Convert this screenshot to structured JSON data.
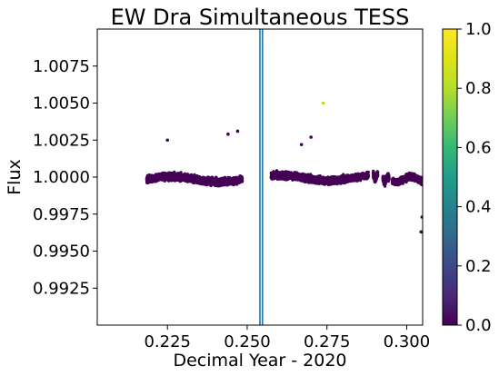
{
  "chart_data": {
    "type": "scatter",
    "title": "EW Dra Simultaneous TESS",
    "xlabel": "Decimal Year - 2020",
    "ylabel": "Flux",
    "xlim": [
      0.203,
      0.305
    ],
    "ylim": [
      0.99,
      1.01
    ],
    "xticks": [
      0.225,
      0.25,
      0.275,
      0.3
    ],
    "xtick_labels": [
      "0.225",
      "0.250",
      "0.275",
      "0.300"
    ],
    "yticks": [
      0.9925,
      0.995,
      0.9975,
      1.0,
      1.0025,
      1.005,
      1.0075
    ],
    "ytick_labels": [
      "0.9925",
      "0.9950",
      "0.9975",
      "1.0000",
      "1.0025",
      "1.0050",
      "1.0075"
    ],
    "grid": false,
    "colorbar": {
      "colormap": "viridis",
      "range": [
        0.0,
        1.0
      ],
      "ticks": [
        0.0,
        0.2,
        0.4,
        0.6,
        0.8,
        1.0
      ],
      "tick_labels": [
        "0.0",
        "0.2",
        "0.4",
        "0.6",
        "0.8",
        "1.0"
      ]
    },
    "vertical_lines": [
      {
        "x": 0.254,
        "color": "#1f77b4"
      },
      {
        "x": 0.2548,
        "color": "#1f77b4"
      }
    ],
    "data_segments": [
      {
        "x_start": 0.2185,
        "x_end": 0.2485,
        "flux_center": 0.99985,
        "scatter": 0.0004,
        "color_value": 0.0
      },
      {
        "x_start": 0.2575,
        "x_end": 0.288,
        "flux_center": 0.99995,
        "scatter": 0.0004,
        "color_value": 0.0
      },
      {
        "x_start": 0.2895,
        "x_end": 0.291,
        "flux_center": 1.00005,
        "scatter": 0.0004,
        "color_value": 0.0
      },
      {
        "x_start": 0.2925,
        "x_end": 0.2945,
        "flux_center": 0.99985,
        "scatter": 0.0004,
        "color_value": 0.0
      },
      {
        "x_start": 0.2955,
        "x_end": 0.305,
        "flux_center": 0.99985,
        "scatter": 0.0004,
        "color_value": 0.0
      }
    ],
    "notable_points": [
      {
        "x": 0.2738,
        "y": 1.005,
        "color_value": 0.75
      },
      {
        "x": 0.247,
        "y": 1.0031,
        "color_value": 0.0
      },
      {
        "x": 0.244,
        "y": 1.0029,
        "color_value": 0.0
      },
      {
        "x": 0.27,
        "y": 1.0027,
        "color_value": 0.0
      },
      {
        "x": 0.267,
        "y": 1.0022,
        "color_value": 0.0
      },
      {
        "x": 0.225,
        "y": 1.0025,
        "color_value": 0.0
      },
      {
        "x": 0.3045,
        "y": 0.9963,
        "color_value": 0.0
      },
      {
        "x": 0.3048,
        "y": 0.9973,
        "color_value": 0.0
      }
    ]
  }
}
